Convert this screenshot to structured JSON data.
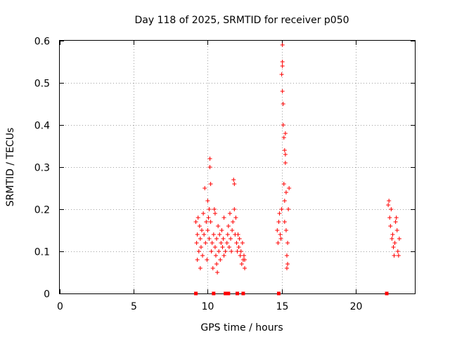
{
  "chart_data": {
    "type": "scatter",
    "title": "Day 118 of 2025, SRMTID for receiver p050",
    "xlabel": "GPS time / hours",
    "ylabel": "SRMTID / TECUs",
    "xlim": [
      0,
      24
    ],
    "ylim": [
      0,
      0.6
    ],
    "xticks": [
      0,
      5,
      10,
      15,
      20
    ],
    "xtick_labels": [
      "0",
      "5",
      "10",
      "15",
      "20"
    ],
    "yticks": [
      0,
      0.1,
      0.2,
      0.3,
      0.4,
      0.5,
      0.6
    ],
    "ytick_labels": [
      "0",
      "0.1",
      "0.2",
      "0.3",
      "0.4",
      "0.5",
      "0.6"
    ],
    "grid": true,
    "series": [
      {
        "name": "SRMTID",
        "color": "#ff0000",
        "marker": "plus",
        "points": [
          [
            9.2,
            0.17
          ],
          [
            9.25,
            0.12
          ],
          [
            9.3,
            0.14
          ],
          [
            9.3,
            0.08
          ],
          [
            9.35,
            0.18
          ],
          [
            9.4,
            0.1
          ],
          [
            9.45,
            0.16
          ],
          [
            9.5,
            0.06
          ],
          [
            9.5,
            0.13
          ],
          [
            9.55,
            0.11
          ],
          [
            9.6,
            0.15
          ],
          [
            9.65,
            0.09
          ],
          [
            9.7,
            0.19
          ],
          [
            9.75,
            0.14
          ],
          [
            9.8,
            0.25
          ],
          [
            9.85,
            0.12
          ],
          [
            9.9,
            0.17
          ],
          [
            9.95,
            0.08
          ],
          [
            10.0,
            0.22
          ],
          [
            10.0,
            0.15
          ],
          [
            10.05,
            0.18
          ],
          [
            10.1,
            0.13
          ],
          [
            10.1,
            0.2
          ],
          [
            10.15,
            0.3
          ],
          [
            10.15,
            0.32
          ],
          [
            10.2,
            0.26
          ],
          [
            10.2,
            0.17
          ],
          [
            10.25,
            0.1
          ],
          [
            10.3,
            0.12
          ],
          [
            10.35,
            0.06
          ],
          [
            10.4,
            0.14
          ],
          [
            10.45,
            0.2
          ],
          [
            10.5,
            0.19
          ],
          [
            10.5,
            0.11
          ],
          [
            10.55,
            0.09
          ],
          [
            10.6,
            0.13
          ],
          [
            10.6,
            0.07
          ],
          [
            10.65,
            0.05
          ],
          [
            10.7,
            0.16
          ],
          [
            10.75,
            0.1
          ],
          [
            10.8,
            0.14
          ],
          [
            10.85,
            0.08
          ],
          [
            10.9,
            0.12
          ],
          [
            10.95,
            0.15
          ],
          [
            11.0,
            0.11
          ],
          [
            11.05,
            0.13
          ],
          [
            11.1,
            0.18
          ],
          [
            11.1,
            0.09
          ],
          [
            11.2,
            0.1
          ],
          [
            11.3,
            0.12
          ],
          [
            11.35,
            0.14
          ],
          [
            11.4,
            0.16
          ],
          [
            11.45,
            0.11
          ],
          [
            11.5,
            0.19
          ],
          [
            11.55,
            0.13
          ],
          [
            11.6,
            0.1
          ],
          [
            11.65,
            0.15
          ],
          [
            11.7,
            0.17
          ],
          [
            11.75,
            0.27
          ],
          [
            11.8,
            0.26
          ],
          [
            11.8,
            0.2
          ],
          [
            11.85,
            0.14
          ],
          [
            11.9,
            0.18
          ],
          [
            11.95,
            0.12
          ],
          [
            12.0,
            0.1
          ],
          [
            12.05,
            0.14
          ],
          [
            12.1,
            0.11
          ],
          [
            12.15,
            0.13
          ],
          [
            12.2,
            0.09
          ],
          [
            12.25,
            0.1
          ],
          [
            12.3,
            0.07
          ],
          [
            12.35,
            0.12
          ],
          [
            12.4,
            0.08
          ],
          [
            12.45,
            0.09
          ],
          [
            12.5,
            0.06
          ],
          [
            12.5,
            0.08
          ],
          [
            14.7,
            0.15
          ],
          [
            14.75,
            0.12
          ],
          [
            14.8,
            0.17
          ],
          [
            14.85,
            0.19
          ],
          [
            14.9,
            0.14
          ],
          [
            14.95,
            0.13
          ],
          [
            15.0,
            0.52
          ],
          [
            15.0,
            0.2
          ],
          [
            15.05,
            0.59
          ],
          [
            15.05,
            0.55
          ],
          [
            15.05,
            0.54
          ],
          [
            15.05,
            0.48
          ],
          [
            15.1,
            0.45
          ],
          [
            15.1,
            0.4
          ],
          [
            15.15,
            0.37
          ],
          [
            15.15,
            0.26
          ],
          [
            15.2,
            0.34
          ],
          [
            15.2,
            0.22
          ],
          [
            15.2,
            0.17
          ],
          [
            15.25,
            0.38
          ],
          [
            15.25,
            0.33
          ],
          [
            15.25,
            0.31
          ],
          [
            15.3,
            0.24
          ],
          [
            15.3,
            0.15
          ],
          [
            15.35,
            0.09
          ],
          [
            15.35,
            0.06
          ],
          [
            15.4,
            0.07
          ],
          [
            15.4,
            0.12
          ],
          [
            15.45,
            0.2
          ],
          [
            15.5,
            0.25
          ],
          [
            22.2,
            0.21
          ],
          [
            22.25,
            0.22
          ],
          [
            22.3,
            0.18
          ],
          [
            22.35,
            0.16
          ],
          [
            22.4,
            0.2
          ],
          [
            22.45,
            0.13
          ],
          [
            22.5,
            0.14
          ],
          [
            22.55,
            0.11
          ],
          [
            22.6,
            0.09
          ],
          [
            22.65,
            0.12
          ],
          [
            22.7,
            0.17
          ],
          [
            22.75,
            0.18
          ],
          [
            22.8,
            0.15
          ],
          [
            22.85,
            0.1
          ],
          [
            22.9,
            0.09
          ],
          [
            22.95,
            0.13
          ]
        ]
      },
      {
        "name": "gaps",
        "color": "#ff0000",
        "marker": "square",
        "points": [
          [
            9.2,
            0
          ],
          [
            10.4,
            0
          ],
          [
            11.2,
            0
          ],
          [
            11.4,
            0
          ],
          [
            12.0,
            0
          ],
          [
            12.4,
            0
          ],
          [
            14.8,
            0
          ],
          [
            22.1,
            0
          ]
        ]
      }
    ]
  }
}
